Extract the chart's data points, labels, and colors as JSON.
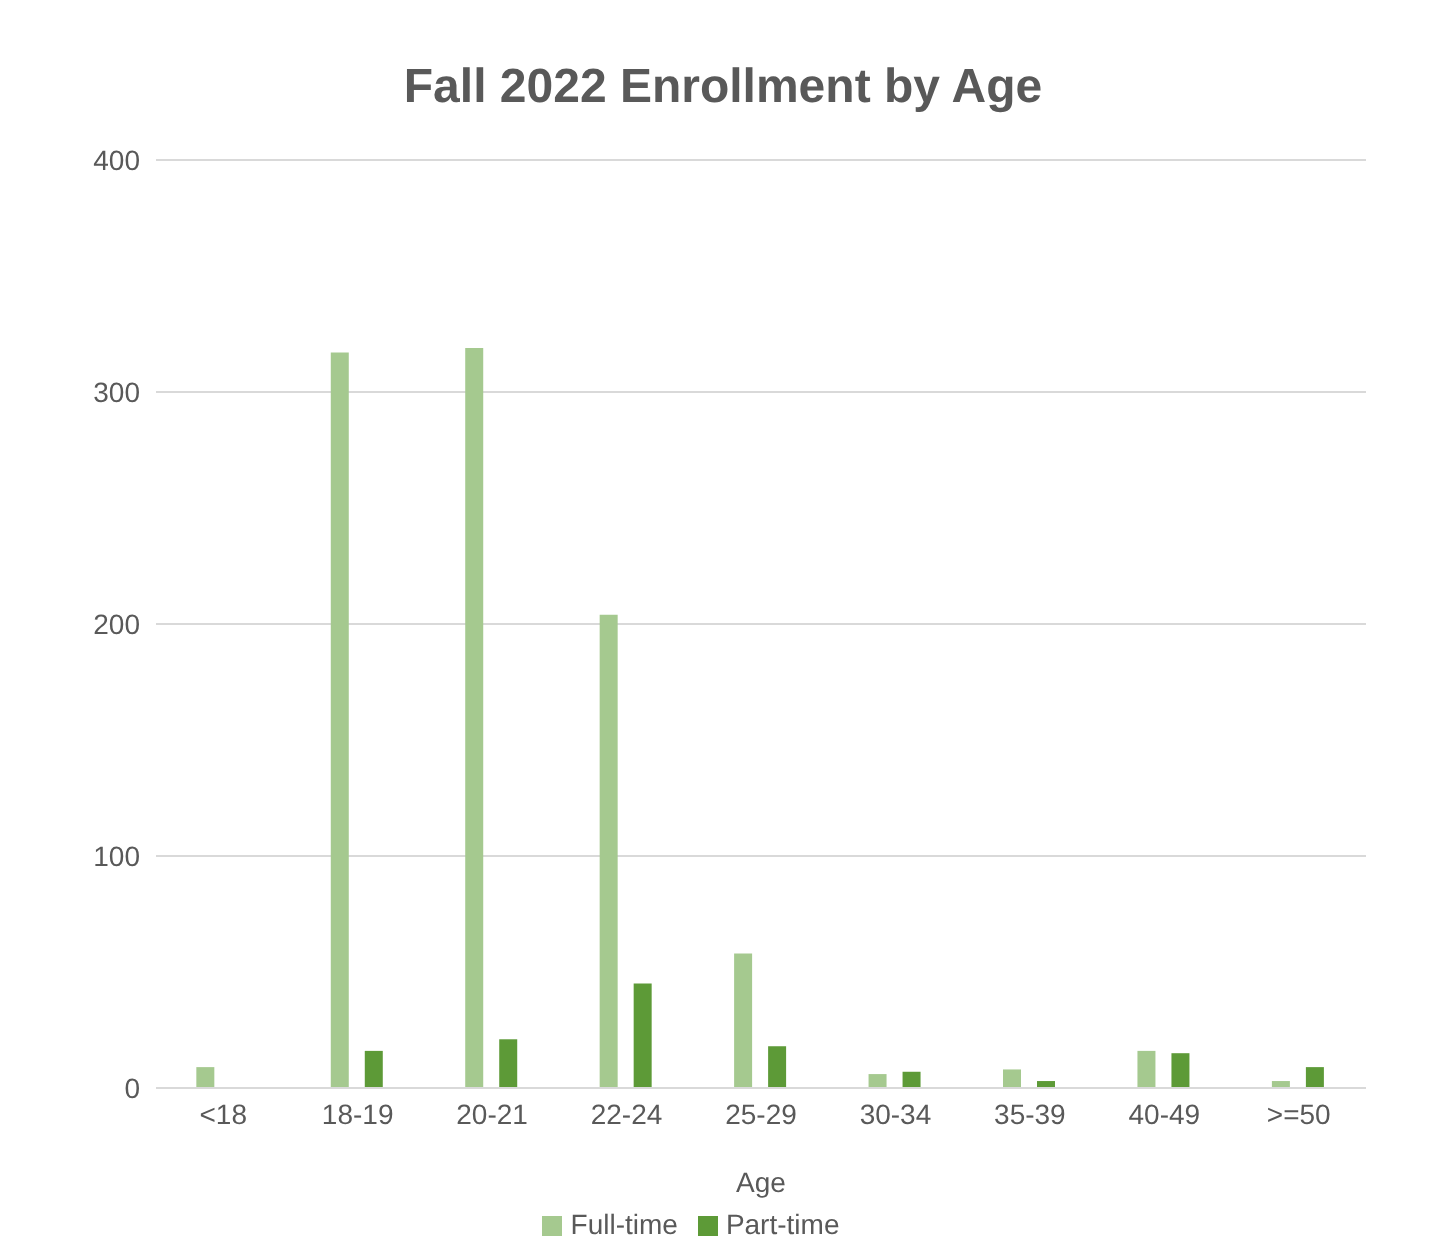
{
  "chart_data": {
    "type": "bar",
    "title": "Fall 2022 Enrollment by Age",
    "xlabel": "Age",
    "categories": [
      "<18",
      "18-19",
      "20-21",
      "22-24",
      "25-29",
      "30-34",
      "35-39",
      "40-49",
      ">=50"
    ],
    "series": [
      {
        "name": "Full-time",
        "color": "#a5c98f",
        "values": [
          9,
          317,
          319,
          204,
          58,
          6,
          8,
          16,
          3
        ]
      },
      {
        "name": "Part-time",
        "color": "#5d9a37",
        "values": [
          0,
          16,
          21,
          45,
          18,
          7,
          3,
          15,
          9
        ]
      }
    ],
    "ylim": [
      0,
      400
    ],
    "yticks": [
      0,
      100,
      200,
      300,
      400
    ],
    "grid": "y",
    "legend": "bottom"
  }
}
